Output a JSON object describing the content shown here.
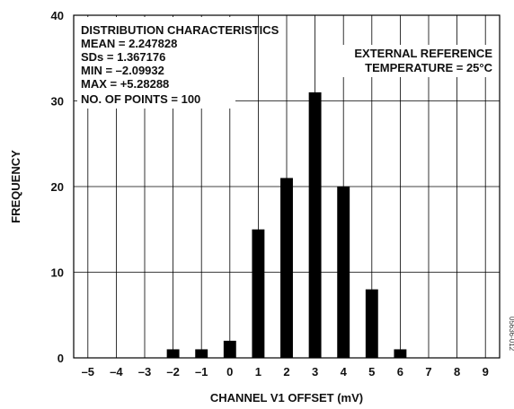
{
  "chart_data": {
    "type": "bar",
    "xlabel": "CHANNEL V1 OFFSET (mV)",
    "ylabel": "FREQUENCY",
    "xlim": [
      -5.5,
      9.5
    ],
    "ylim": [
      0,
      40
    ],
    "x_ticks": [
      -5,
      -4,
      -3,
      -2,
      -1,
      0,
      1,
      2,
      3,
      4,
      5,
      6,
      7,
      8,
      9
    ],
    "x_tick_labels": [
      "–5",
      "–4",
      "–3",
      "–2",
      "–1",
      "0",
      "1",
      "2",
      "3",
      "4",
      "5",
      "6",
      "7",
      "8",
      "9"
    ],
    "y_ticks": [
      0,
      10,
      20,
      30,
      40
    ],
    "x": [
      -2,
      -1,
      0,
      1,
      2,
      3,
      4,
      5,
      6
    ],
    "values": [
      1,
      1,
      2,
      15,
      21,
      31,
      20,
      8,
      1
    ],
    "grid": true,
    "annotations": {
      "stats": [
        "DISTRIBUTION CHARACTERISTICS",
        "MEAN = 2.247828",
        "SDs = 1.367176",
        "MIN = –2.09932",
        "MAX = +5.28288",
        "NO. OF POINTS = 100"
      ],
      "conditions": [
        "EXTERNAL REFERENCE",
        "TEMPERATURE = 25°C"
      ]
    },
    "figure_code": "05636-012"
  }
}
